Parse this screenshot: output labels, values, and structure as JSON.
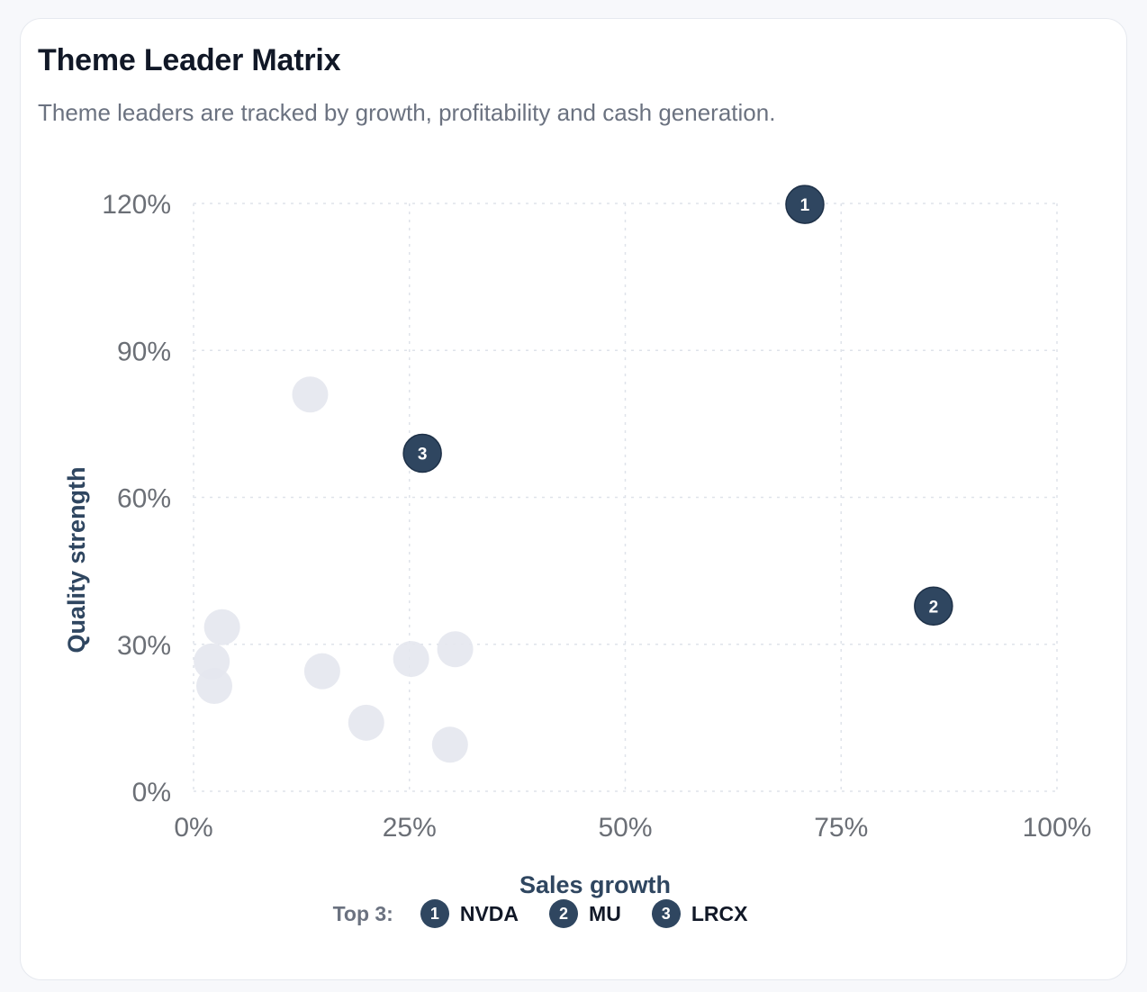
{
  "header": {
    "title": "Theme Leader Matrix",
    "subtitle": "Theme leaders are tracked by growth, profitability and cash generation."
  },
  "colors": {
    "leader": "#2f4660",
    "other": "#e4e7ee",
    "grid": "#dfe3ea",
    "axis_label": "#2f4660",
    "tick": "#6b6f76"
  },
  "chart_data": {
    "type": "scatter",
    "xlabel": "Sales growth",
    "ylabel": "Quality strength",
    "xlim": [
      0,
      100
    ],
    "ylim": [
      0,
      120
    ],
    "x_ticks": [
      0,
      25,
      50,
      75,
      100
    ],
    "y_ticks": [
      0,
      30,
      60,
      90,
      120
    ],
    "x_tick_labels": [
      "0%",
      "25%",
      "50%",
      "75%",
      "100%"
    ],
    "y_tick_labels": [
      "0%",
      "30%",
      "60%",
      "90%",
      "120%"
    ],
    "grid": true,
    "leaders": [
      {
        "rank": "1",
        "ticker": "NVDA",
        "x": 70.8,
        "y": 119.8
      },
      {
        "rank": "2",
        "ticker": "MU",
        "x": 85.7,
        "y": 37.8
      },
      {
        "rank": "3",
        "ticker": "LRCX",
        "x": 26.5,
        "y": 69.0
      }
    ],
    "others": [
      {
        "x": 13.5,
        "y": 81.0
      },
      {
        "x": 3.3,
        "y": 33.5
      },
      {
        "x": 2.1,
        "y": 26.5
      },
      {
        "x": 2.4,
        "y": 21.5
      },
      {
        "x": 14.9,
        "y": 24.5
      },
      {
        "x": 25.2,
        "y": 27.0
      },
      {
        "x": 30.3,
        "y": 29.0
      },
      {
        "x": 20.0,
        "y": 14.0
      },
      {
        "x": 29.7,
        "y": 9.5
      }
    ]
  },
  "legend": {
    "label": "Top 3:",
    "items": [
      {
        "rank": "1",
        "ticker": "NVDA"
      },
      {
        "rank": "2",
        "ticker": "MU"
      },
      {
        "rank": "3",
        "ticker": "LRCX"
      }
    ]
  }
}
